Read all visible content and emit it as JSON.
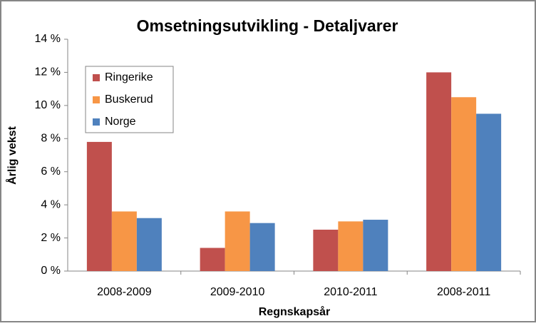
{
  "chart_data": {
    "type": "bar",
    "title": "Omsetningsutvikling - Detaljvarer",
    "x_label": "Regnskapsår",
    "y_label": "Årlig vekst",
    "categories": [
      "2008-2009",
      "2009-2010",
      "2010-2011",
      "2008-2011"
    ],
    "series": [
      {
        "name": "Ringerike",
        "color": "#c0504d",
        "values": [
          7.8,
          1.4,
          2.5,
          12.0
        ]
      },
      {
        "name": "Buskerud",
        "color": "#f79646",
        "values": [
          3.6,
          3.6,
          3.0,
          10.5
        ]
      },
      {
        "name": "Norge",
        "color": "#4f81bd",
        "values": [
          3.2,
          2.9,
          3.1,
          9.5
        ]
      }
    ],
    "ylim": [
      0,
      14
    ],
    "yticks": [
      {
        "value": 0,
        "label": "0 %"
      },
      {
        "value": 2,
        "label": "2 %"
      },
      {
        "value": 4,
        "label": "4 %"
      },
      {
        "value": 6,
        "label": "6 %"
      },
      {
        "value": 8,
        "label": "8 %"
      },
      {
        "value": 10,
        "label": "10 %"
      },
      {
        "value": 12,
        "label": "12 %"
      },
      {
        "value": 14,
        "label": "14 %"
      }
    ],
    "grid": false,
    "legend": "upper-left"
  }
}
